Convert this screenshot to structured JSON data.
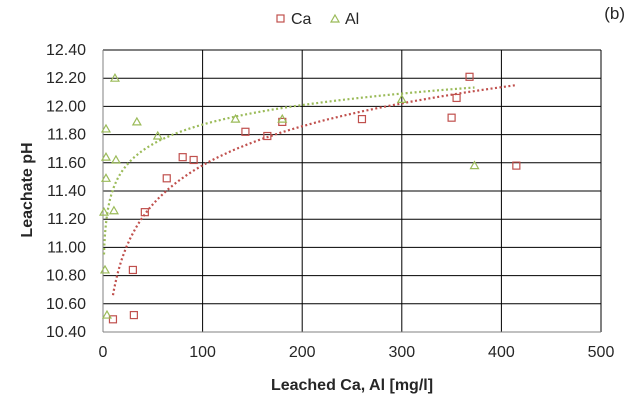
{
  "panel_label": "(b)",
  "colors": {
    "Ca": "#c0504d",
    "Al": "#9bbb59",
    "grid": "#000000",
    "axis": "#808080"
  },
  "chart_data": {
    "type": "scatter",
    "title": "",
    "xlabel": "Leached Ca, Al [mg/l]",
    "ylabel": "Leachate pH",
    "xlim": [
      0,
      500
    ],
    "ylim": [
      10.4,
      12.4
    ],
    "x_ticks": [
      "0",
      "100",
      "200",
      "300",
      "400",
      "500"
    ],
    "y_ticks": [
      "10.40",
      "10.60",
      "10.80",
      "11.00",
      "11.20",
      "11.40",
      "11.60",
      "11.80",
      "12.00",
      "12.20",
      "12.40"
    ],
    "x_tick_values": [
      0,
      100,
      200,
      300,
      400,
      500
    ],
    "y_tick_values": [
      10.4,
      10.6,
      10.8,
      11.0,
      11.2,
      11.4,
      11.6,
      11.8,
      12.0,
      12.2,
      12.4
    ],
    "grid": true,
    "legend": {
      "position": "top",
      "entries": [
        "Ca",
        "Al"
      ]
    },
    "series": [
      {
        "name": "Ca",
        "marker": "square",
        "points": [
          [
            10,
            10.49
          ],
          [
            30,
            10.84
          ],
          [
            31,
            10.52
          ],
          [
            42,
            11.25
          ],
          [
            64,
            11.49
          ],
          [
            80,
            11.64
          ],
          [
            91,
            11.62
          ],
          [
            143,
            11.82
          ],
          [
            165,
            11.79
          ],
          [
            180,
            11.89
          ],
          [
            260,
            11.91
          ],
          [
            350,
            11.92
          ],
          [
            355,
            12.06
          ],
          [
            368,
            12.21
          ],
          [
            415,
            11.58
          ]
        ],
        "trendline": {
          "kind": "logarithmic",
          "a": 0.4,
          "b": 9.74,
          "x_range": [
            10,
            415
          ]
        }
      },
      {
        "name": "Al",
        "marker": "triangle",
        "points": [
          [
            1,
            11.25
          ],
          [
            2,
            10.84
          ],
          [
            3,
            11.84
          ],
          [
            3,
            11.64
          ],
          [
            3,
            11.49
          ],
          [
            4,
            10.52
          ],
          [
            12,
            12.2
          ],
          [
            11,
            11.26
          ],
          [
            13,
            11.62
          ],
          [
            34,
            11.89
          ],
          [
            55,
            11.79
          ],
          [
            133,
            11.91
          ],
          [
            180,
            11.91
          ],
          [
            300,
            12.05
          ],
          [
            373,
            11.58
          ]
        ],
        "trendline": {
          "kind": "logarithmic",
          "a": 0.2,
          "b": 10.95,
          "x_range": [
            1,
            373
          ]
        }
      }
    ]
  }
}
